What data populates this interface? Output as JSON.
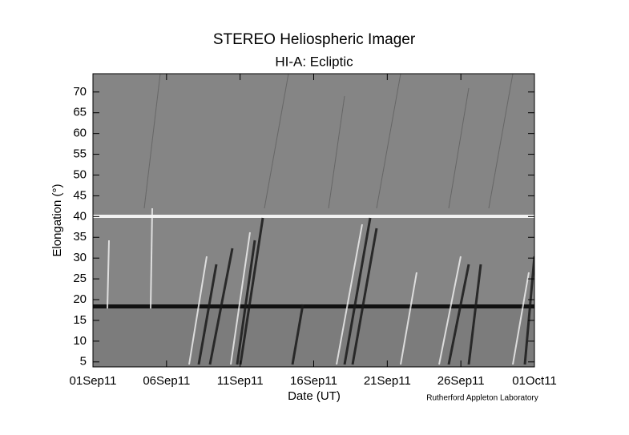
{
  "chart_data": {
    "type": "jmap",
    "title": "STEREO Heliospheric Imager",
    "subtitle": "HI-A: Ecliptic",
    "x_label": "Date (UT)",
    "y_label": "Elongation (°)",
    "credit": "Rutherford Appleton Laboratory",
    "xlim": [
      "2011-09-01",
      "2011-10-01"
    ],
    "xticks": [
      {
        "value": "2011-09-01",
        "label": "01Sep11"
      },
      {
        "value": "2011-09-06",
        "label": "06Sep11"
      },
      {
        "value": "2011-09-11",
        "label": "11Sep11"
      },
      {
        "value": "2011-09-16",
        "label": "16Sep11"
      },
      {
        "value": "2011-09-21",
        "label": "21Sep11"
      },
      {
        "value": "2011-09-26",
        "label": "26Sep11"
      },
      {
        "value": "2011-10-01",
        "label": "01Oct11"
      }
    ],
    "ylim": [
      3.8,
      74.4
    ],
    "yticks": [
      5,
      10,
      15,
      20,
      25,
      30,
      35,
      40,
      45,
      50,
      55,
      60,
      65,
      70
    ]
  }
}
